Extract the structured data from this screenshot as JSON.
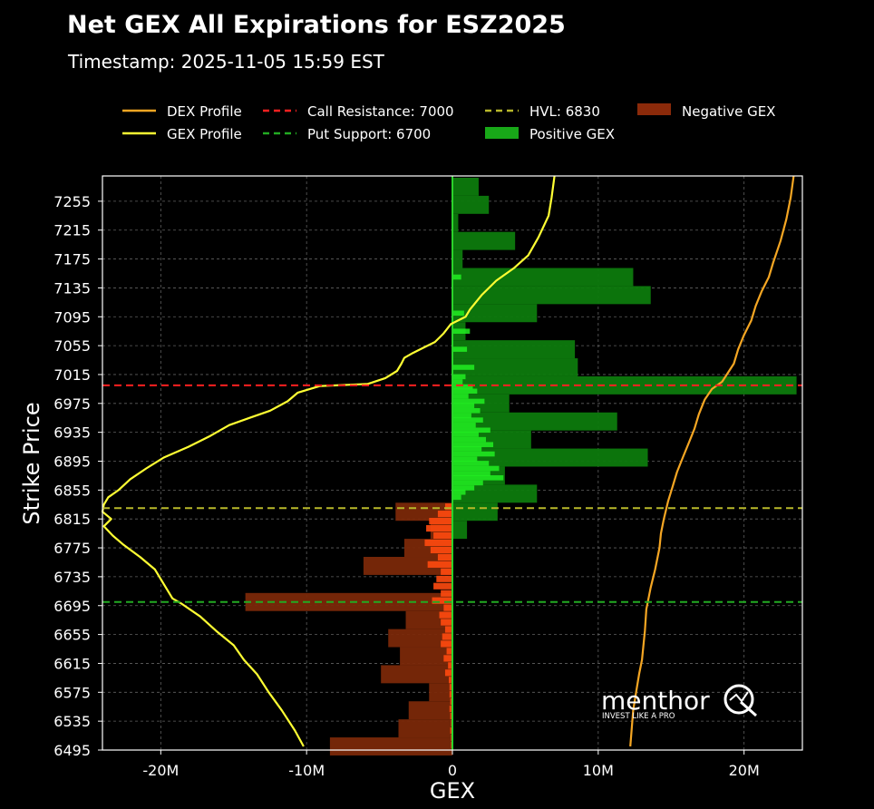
{
  "chart_data": {
    "type": "bar",
    "title": "Net GEX All Expirations for ESZ2025",
    "subtitle": "Timestamp: 2025-11-05 15:59 EST",
    "xlabel": "GEX",
    "ylabel": "Strike Price",
    "xlim": [
      -24000000,
      24000000
    ],
    "ylim": [
      6495,
      7290
    ],
    "x_ticks": [
      -20000000,
      -10000000,
      0,
      10000000,
      20000000
    ],
    "x_tick_labels": [
      "-20M",
      "-10M",
      "0",
      "10M",
      "20M"
    ],
    "y_ticks": [
      7255,
      7215,
      7175,
      7135,
      7095,
      7055,
      7015,
      6975,
      6935,
      6895,
      6855,
      6815,
      6775,
      6735,
      6695,
      6655,
      6615,
      6575,
      6535,
      6495
    ],
    "grid": true,
    "legend_position": "top",
    "legend": [
      {
        "label": "DEX Profile",
        "kind": "line",
        "color": "#f5a623"
      },
      {
        "label": "GEX Profile",
        "kind": "line",
        "color": "#ffff33"
      },
      {
        "label": "Call Resistance: 7000",
        "kind": "dashed",
        "color": "#ff2020"
      },
      {
        "label": "Put Support: 6700",
        "kind": "dashed",
        "color": "#22aa22"
      },
      {
        "label": "HVL: 6830",
        "kind": "dashed",
        "color": "#b8b82a"
      },
      {
        "label": "Positive GEX",
        "kind": "patch",
        "color": "#18a818"
      },
      {
        "label": "Negative GEX",
        "kind": "patch",
        "color": "#8b2a0a"
      }
    ],
    "levels": {
      "call_resistance": 7000,
      "put_support": 6700,
      "hvl": 6830
    },
    "aggregate_bars": [
      {
        "strike": 7275,
        "value": 1800000
      },
      {
        "strike": 7250,
        "value": 2500000
      },
      {
        "strike": 7225,
        "value": 400000
      },
      {
        "strike": 7200,
        "value": 4300000
      },
      {
        "strike": 7175,
        "value": 700000
      },
      {
        "strike": 7150,
        "value": 12400000
      },
      {
        "strike": 7125,
        "value": 13600000
      },
      {
        "strike": 7100,
        "value": 5800000
      },
      {
        "strike": 7075,
        "value": 900000
      },
      {
        "strike": 7050,
        "value": 8400000
      },
      {
        "strike": 7025,
        "value": 8600000
      },
      {
        "strike": 7000,
        "value": 23600000
      },
      {
        "strike": 6975,
        "value": 3900000
      },
      {
        "strike": 6950,
        "value": 11300000
      },
      {
        "strike": 6925,
        "value": 5400000
      },
      {
        "strike": 6900,
        "value": 13400000
      },
      {
        "strike": 6875,
        "value": 3600000
      },
      {
        "strike": 6850,
        "value": 5800000
      },
      {
        "strike": 6825,
        "value": 3100000
      },
      {
        "strike": 6800,
        "value": 1000000
      },
      {
        "strike": 6825,
        "value": -3900000
      },
      {
        "strike": 6800,
        "value": -1500000
      },
      {
        "strike": 6775,
        "value": -3300000
      },
      {
        "strike": 6750,
        "value": -6100000
      },
      {
        "strike": 6700,
        "value": -14200000
      },
      {
        "strike": 6675,
        "value": -3200000
      },
      {
        "strike": 6650,
        "value": -4400000
      },
      {
        "strike": 6625,
        "value": -3600000
      },
      {
        "strike": 6600,
        "value": -4900000
      },
      {
        "strike": 6575,
        "value": -1600000
      },
      {
        "strike": 6550,
        "value": -3000000
      },
      {
        "strike": 6525,
        "value": -3700000
      },
      {
        "strike": 6500,
        "value": -8400000
      }
    ],
    "fine_bars_positive": [
      [
        7150,
        600000
      ],
      [
        7100,
        800000
      ],
      [
        7075,
        1200000
      ],
      [
        7050,
        1000000
      ],
      [
        7025,
        1500000
      ],
      [
        7012,
        900000
      ],
      [
        7005,
        700000
      ],
      [
        6998,
        1400000
      ],
      [
        6992,
        1700000
      ],
      [
        6985,
        1100000
      ],
      [
        6978,
        2200000
      ],
      [
        6972,
        1500000
      ],
      [
        6965,
        1900000
      ],
      [
        6958,
        1300000
      ],
      [
        6952,
        2100000
      ],
      [
        6945,
        1600000
      ],
      [
        6938,
        2600000
      ],
      [
        6932,
        1800000
      ],
      [
        6925,
        2300000
      ],
      [
        6918,
        2800000
      ],
      [
        6912,
        2000000
      ],
      [
        6905,
        2900000
      ],
      [
        6898,
        1700000
      ],
      [
        6892,
        2500000
      ],
      [
        6885,
        3200000
      ],
      [
        6878,
        2600000
      ],
      [
        6872,
        3500000
      ],
      [
        6865,
        2100000
      ],
      [
        6858,
        1500000
      ],
      [
        6852,
        900000
      ],
      [
        6845,
        600000
      ]
    ],
    "fine_bars_negative": [
      [
        6832,
        -500000
      ],
      [
        6822,
        -1000000
      ],
      [
        6812,
        -1600000
      ],
      [
        6802,
        -1800000
      ],
      [
        6792,
        -1300000
      ],
      [
        6782,
        -1900000
      ],
      [
        6772,
        -1500000
      ],
      [
        6762,
        -1000000
      ],
      [
        6752,
        -1700000
      ],
      [
        6742,
        -800000
      ],
      [
        6732,
        -1100000
      ],
      [
        6722,
        -1300000
      ],
      [
        6712,
        -800000
      ],
      [
        6702,
        -1400000
      ],
      [
        6692,
        -600000
      ],
      [
        6682,
        -900000
      ],
      [
        6672,
        -800000
      ],
      [
        6662,
        -500000
      ],
      [
        6652,
        -700000
      ],
      [
        6642,
        -800000
      ],
      [
        6632,
        -400000
      ],
      [
        6622,
        -600000
      ],
      [
        6612,
        -300000
      ],
      [
        6602,
        -500000
      ],
      [
        6592,
        -250000
      ],
      [
        6582,
        -200000
      ],
      [
        6572,
        -200000
      ],
      [
        6562,
        -150000
      ],
      [
        6552,
        -200000
      ],
      [
        6542,
        -150000
      ],
      [
        6532,
        -100000
      ],
      [
        6522,
        -150000
      ],
      [
        6512,
        -100000
      ],
      [
        6502,
        -100000
      ]
    ],
    "series": [
      {
        "name": "GEX Profile",
        "x": [
          7000000,
          6800000,
          6600000,
          5900000,
          5200000,
          4200000,
          3000000,
          2000000,
          1200000,
          900000,
          -100000,
          -600000,
          -1200000,
          -2000000,
          -2700000,
          -3300000,
          -3500000,
          -3800000,
          -4600000,
          -5800000,
          -9100000,
          -10600000,
          -11300000,
          -12500000,
          -13900000,
          -15300000,
          -16600000,
          -18100000,
          -19800000,
          -21000000,
          -22100000,
          -22900000,
          -23600000,
          -23900000,
          -24000000,
          -23400000,
          -23900000,
          -23300000,
          -22600000,
          -21400000,
          -20400000,
          -19800000,
          -19200000,
          -18600000,
          -17300000,
          -16200000,
          -15000000,
          -14300000,
          -13400000,
          -12600000,
          -11700000,
          -10800000,
          -10200000
        ],
        "y": [
          7290,
          7260,
          7235,
          7205,
          7180,
          7162,
          7145,
          7125,
          7105,
          7095,
          7085,
          7072,
          7060,
          7052,
          7045,
          7038,
          7030,
          7020,
          7010,
          7002,
          6999,
          6990,
          6978,
          6965,
          6955,
          6945,
          6930,
          6915,
          6900,
          6885,
          6870,
          6855,
          6845,
          6835,
          6825,
          6815,
          6805,
          6792,
          6780,
          6762,
          6745,
          6725,
          6705,
          6698,
          6680,
          6660,
          6640,
          6620,
          6600,
          6575,
          6550,
          6522,
          6500
        ]
      },
      {
        "name": "DEX Profile",
        "x": [
          23400000,
          23200000,
          22900000,
          22500000,
          22000000,
          21700000,
          21200000,
          20800000,
          20500000,
          20000000,
          19600000,
          19300000,
          18500000,
          17800000,
          17300000,
          16900000,
          16600000,
          16200000,
          15800000,
          15400000,
          15100000,
          14800000,
          14500000,
          14300000,
          14200000,
          13900000,
          13600000,
          13400000,
          13300000,
          13200000,
          13100000,
          13000000,
          12800000,
          12600000,
          12400000,
          12200000
        ],
        "y": [
          7290,
          7260,
          7230,
          7200,
          7170,
          7150,
          7130,
          7110,
          7090,
          7070,
          7050,
          7030,
          7005,
          6995,
          6980,
          6960,
          6940,
          6920,
          6900,
          6880,
          6860,
          6840,
          6815,
          6795,
          6775,
          6745,
          6720,
          6700,
          6690,
          6660,
          6640,
          6620,
          6600,
          6575,
          6550,
          6500
        ]
      }
    ]
  },
  "watermark": {
    "brand": "menthor",
    "tagline": "INVEST LIKE A PRO"
  },
  "colors": {
    "positive_fill": "#0d7a0d",
    "positive_fine": "#22ee22",
    "negative_fill": "#7a2808",
    "negative_fine": "#ff4a10",
    "gex_line": "#ffff33",
    "dex_line": "#f5a623",
    "zero_line": "#2bd22b"
  }
}
